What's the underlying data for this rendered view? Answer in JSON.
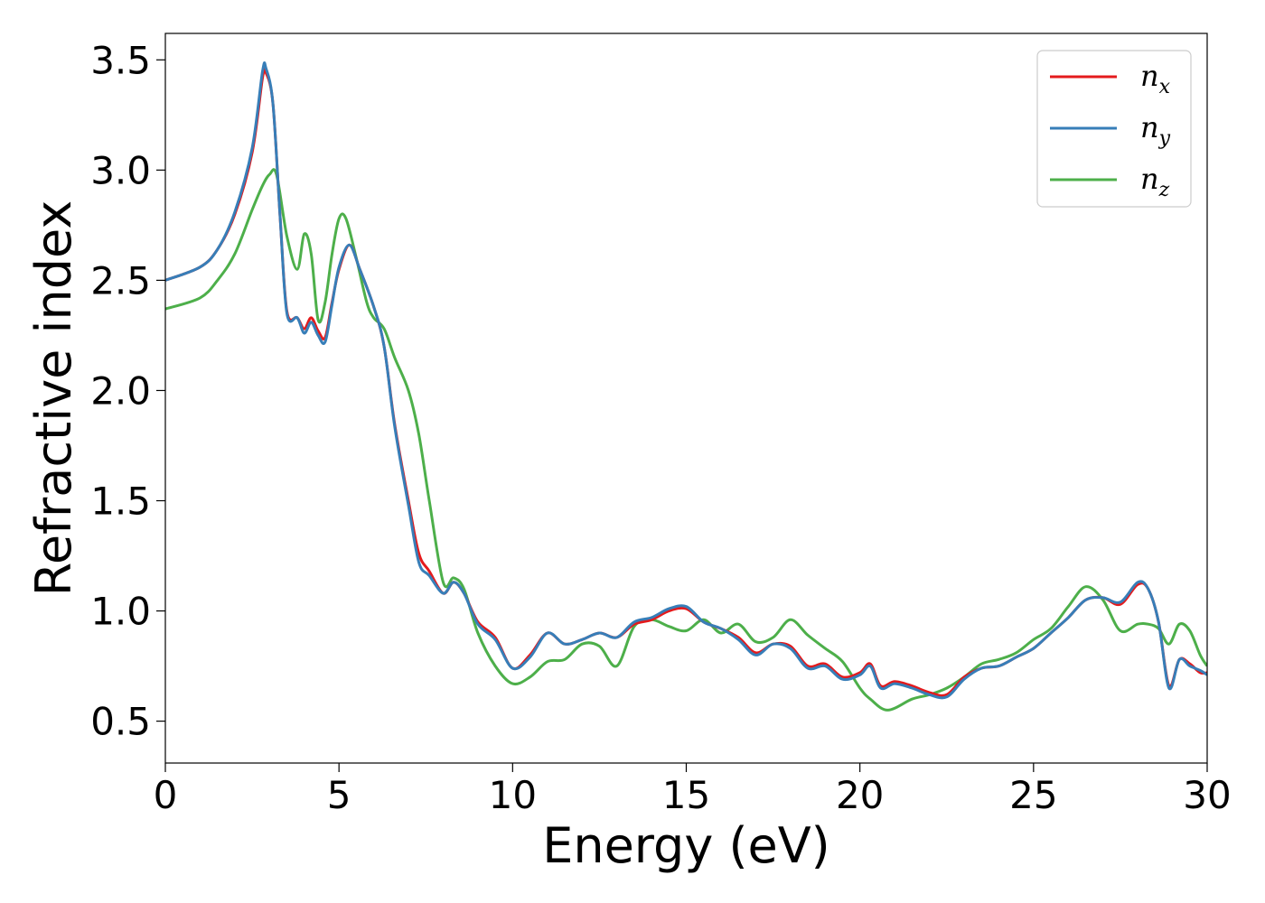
{
  "chart_data": {
    "type": "line",
    "title": "",
    "xlabel": "Energy (eV)",
    "ylabel": "Refractive index",
    "xlim": [
      0,
      30
    ],
    "ylim": [
      0.31,
      3.62
    ],
    "xticks": [
      0,
      5,
      10,
      15,
      20,
      25,
      30
    ],
    "xtick_labels": [
      "0",
      "5",
      "10",
      "15",
      "20",
      "25",
      "30"
    ],
    "yticks": [
      0.5,
      1.0,
      1.5,
      2.0,
      2.5,
      3.0,
      3.5
    ],
    "ytick_labels": [
      "0.5",
      "1.0",
      "1.5",
      "2.0",
      "2.5",
      "3.0",
      "3.5"
    ],
    "grid": false,
    "legend_position": "top-right",
    "series": [
      {
        "name": "n_x",
        "label_main": "n",
        "label_sub": "x",
        "color": "#e41a1c",
        "x": [
          0,
          1,
          1.5,
          2,
          2.5,
          2.8,
          2.9,
          3.1,
          3.3,
          3.5,
          3.8,
          4.0,
          4.2,
          4.4,
          4.6,
          4.8,
          5.0,
          5.3,
          5.6,
          6.0,
          6.3,
          6.6,
          7.0,
          7.3,
          7.6,
          8.0,
          8.3,
          8.6,
          9.0,
          9.5,
          10.0,
          10.5,
          11.0,
          11.5,
          12.0,
          12.5,
          13.0,
          13.5,
          14.0,
          14.5,
          15.0,
          15.5,
          16.0,
          16.5,
          17.0,
          17.5,
          18.0,
          18.5,
          19.0,
          19.5,
          20.0,
          20.3,
          20.6,
          21.0,
          21.5,
          22.0,
          22.5,
          23.0,
          23.5,
          24.0,
          24.5,
          25.0,
          25.5,
          26.0,
          26.5,
          27.0,
          27.5,
          28.0,
          28.3,
          28.6,
          28.9,
          29.2,
          29.5,
          29.8,
          30
        ],
        "y": [
          2.5,
          2.56,
          2.64,
          2.8,
          3.08,
          3.42,
          3.44,
          3.3,
          2.8,
          2.36,
          2.33,
          2.28,
          2.33,
          2.27,
          2.24,
          2.4,
          2.55,
          2.66,
          2.55,
          2.38,
          2.2,
          1.85,
          1.5,
          1.26,
          1.18,
          1.08,
          1.13,
          1.08,
          0.95,
          0.88,
          0.74,
          0.8,
          0.9,
          0.85,
          0.87,
          0.9,
          0.88,
          0.94,
          0.96,
          1.0,
          1.01,
          0.95,
          0.92,
          0.88,
          0.81,
          0.85,
          0.84,
          0.75,
          0.76,
          0.7,
          0.72,
          0.76,
          0.66,
          0.68,
          0.66,
          0.63,
          0.62,
          0.7,
          0.74,
          0.75,
          0.79,
          0.83,
          0.9,
          0.97,
          1.05,
          1.06,
          1.03,
          1.12,
          1.1,
          0.95,
          0.66,
          0.78,
          0.76,
          0.72,
          0.72
        ]
      },
      {
        "name": "n_y",
        "label_main": "n",
        "label_sub": "y",
        "color": "#377eb8",
        "x": [
          0,
          1,
          1.5,
          2,
          2.5,
          2.8,
          2.9,
          3.1,
          3.3,
          3.5,
          3.8,
          4.0,
          4.2,
          4.4,
          4.6,
          4.8,
          5.0,
          5.3,
          5.6,
          6.0,
          6.3,
          6.6,
          7.0,
          7.3,
          7.6,
          8.0,
          8.3,
          8.6,
          9.0,
          9.5,
          10.0,
          10.5,
          11.0,
          11.5,
          12.0,
          12.5,
          13.0,
          13.5,
          14.0,
          14.5,
          15.0,
          15.5,
          16.0,
          16.5,
          17.0,
          17.5,
          18.0,
          18.5,
          19.0,
          19.5,
          20.0,
          20.3,
          20.6,
          21.0,
          21.5,
          22.0,
          22.5,
          23.0,
          23.5,
          24.0,
          24.5,
          25.0,
          25.5,
          26.0,
          26.5,
          27.0,
          27.5,
          28.0,
          28.3,
          28.6,
          28.9,
          29.2,
          29.5,
          29.8,
          30
        ],
        "y": [
          2.5,
          2.56,
          2.64,
          2.81,
          3.1,
          3.45,
          3.46,
          3.3,
          2.8,
          2.35,
          2.33,
          2.26,
          2.31,
          2.25,
          2.22,
          2.39,
          2.56,
          2.66,
          2.55,
          2.38,
          2.2,
          1.84,
          1.48,
          1.22,
          1.16,
          1.08,
          1.13,
          1.08,
          0.94,
          0.87,
          0.74,
          0.79,
          0.9,
          0.85,
          0.87,
          0.9,
          0.88,
          0.95,
          0.97,
          1.01,
          1.02,
          0.95,
          0.92,
          0.87,
          0.8,
          0.85,
          0.83,
          0.74,
          0.75,
          0.69,
          0.71,
          0.75,
          0.65,
          0.67,
          0.65,
          0.62,
          0.61,
          0.69,
          0.74,
          0.75,
          0.79,
          0.83,
          0.9,
          0.97,
          1.05,
          1.06,
          1.04,
          1.13,
          1.1,
          0.95,
          0.65,
          0.78,
          0.75,
          0.73,
          0.71
        ]
      },
      {
        "name": "n_z",
        "label_main": "n",
        "label_sub": "z",
        "color": "#4daf4a",
        "x": [
          0,
          1,
          1.5,
          2,
          2.5,
          2.8,
          3.0,
          3.2,
          3.5,
          3.8,
          4.0,
          4.2,
          4.4,
          4.6,
          4.8,
          5.0,
          5.2,
          5.5,
          5.8,
          6.0,
          6.3,
          6.6,
          7.0,
          7.3,
          7.6,
          8.0,
          8.3,
          8.6,
          9.0,
          9.5,
          10.0,
          10.5,
          11.0,
          11.5,
          12.0,
          12.5,
          13.0,
          13.5,
          14.0,
          14.5,
          15.0,
          15.5,
          16.0,
          16.5,
          17.0,
          17.5,
          18.0,
          18.5,
          19.0,
          19.5,
          20.0,
          20.3,
          20.8,
          21.5,
          22.0,
          22.5,
          23.0,
          23.5,
          24.0,
          24.5,
          25.0,
          25.5,
          26.0,
          26.5,
          27.0,
          27.5,
          28.0,
          28.3,
          28.6,
          28.9,
          29.2,
          29.5,
          29.8,
          30
        ],
        "y": [
          2.37,
          2.42,
          2.5,
          2.62,
          2.82,
          2.93,
          2.98,
          2.98,
          2.7,
          2.55,
          2.71,
          2.62,
          2.32,
          2.4,
          2.62,
          2.78,
          2.78,
          2.6,
          2.4,
          2.33,
          2.28,
          2.15,
          2.0,
          1.8,
          1.5,
          1.13,
          1.15,
          1.1,
          0.9,
          0.75,
          0.67,
          0.7,
          0.77,
          0.78,
          0.85,
          0.84,
          0.75,
          0.93,
          0.96,
          0.93,
          0.91,
          0.96,
          0.9,
          0.94,
          0.86,
          0.88,
          0.96,
          0.89,
          0.83,
          0.77,
          0.65,
          0.6,
          0.55,
          0.6,
          0.62,
          0.65,
          0.7,
          0.76,
          0.78,
          0.81,
          0.87,
          0.92,
          1.02,
          1.11,
          1.05,
          0.91,
          0.94,
          0.94,
          0.92,
          0.85,
          0.94,
          0.91,
          0.8,
          0.75
        ]
      }
    ]
  }
}
